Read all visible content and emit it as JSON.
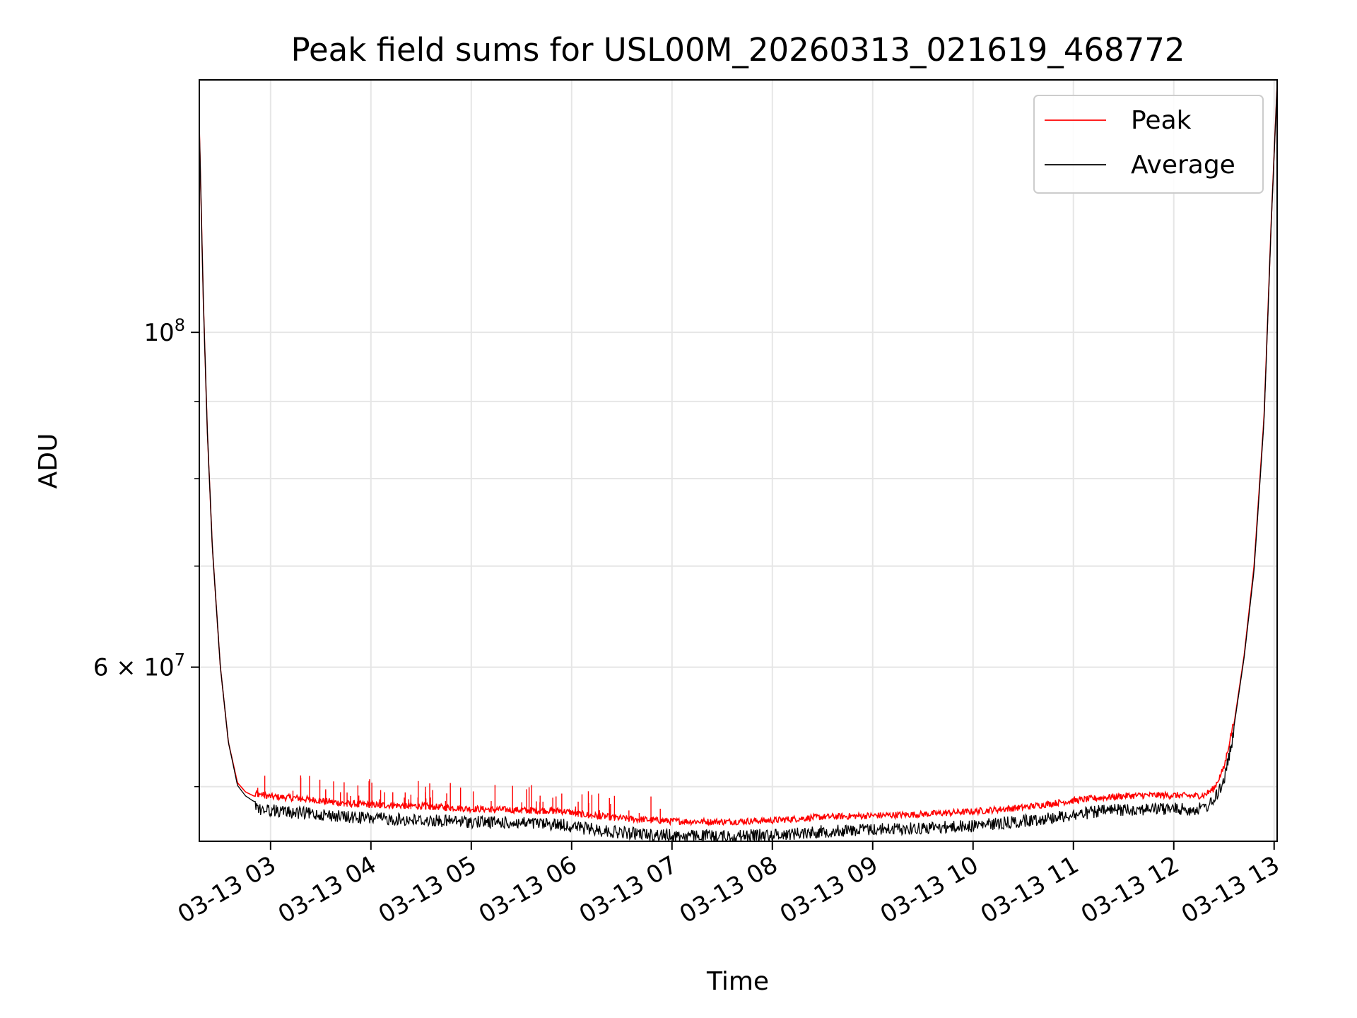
{
  "chart_data": {
    "type": "line",
    "title": "Peak field sums for USL00M_20260313_021619_468772",
    "xlabel": "Time",
    "ylabel": "ADU",
    "yscale": "log",
    "grid": true,
    "legend_position": "top-right",
    "xlim": [
      2.29,
      13.03
    ],
    "ylim": [
      46000000,
      147000000
    ],
    "x_unit": "hours since 2026-03-13 00:00",
    "x_ticks": [
      3,
      4,
      5,
      6,
      7,
      8,
      9,
      10,
      11,
      12,
      13
    ],
    "x_tick_labels": [
      "03-13 03",
      "03-13 04",
      "03-13 05",
      "03-13 06",
      "03-13 07",
      "03-13 08",
      "03-13 09",
      "03-13 10",
      "03-13 11",
      "03-13 12",
      "03-13 13"
    ],
    "y_major_ticks": [
      {
        "value": 100000000,
        "base": "10",
        "exp": "8"
      },
      {
        "value": 60000000,
        "mantissa": "6",
        "base": "10",
        "exp": "7"
      }
    ],
    "y_minor_ticks": [
      50000000,
      70000000,
      80000000,
      90000000
    ],
    "x": [
      2.29,
      2.33,
      2.37,
      2.42,
      2.5,
      2.58,
      2.67,
      2.75,
      2.83,
      3.0,
      3.25,
      3.5,
      3.75,
      4.0,
      4.5,
      5.0,
      5.5,
      5.9,
      6.1,
      6.5,
      7.0,
      7.5,
      8.0,
      8.5,
      9.0,
      9.5,
      10.0,
      10.5,
      11.0,
      11.25,
      11.5,
      11.75,
      12.0,
      12.2,
      12.3,
      12.4,
      12.5,
      12.6,
      12.7,
      12.8,
      12.9,
      12.97,
      13.03
    ],
    "series": [
      {
        "name": "Peak",
        "color": "#ff0000",
        "values": [
          137000000,
          105000000,
          86000000,
          72000000,
          60000000,
          53500000,
          50300000,
          49600000,
          49300000,
          49000000,
          48900000,
          48700000,
          48500000,
          48400000,
          48300000,
          48100000,
          48000000,
          47950000,
          47700000,
          47400000,
          47200000,
          47150000,
          47250000,
          47500000,
          47600000,
          47700000,
          47900000,
          48200000,
          48700000,
          48900000,
          49050000,
          49100000,
          49100000,
          49050000,
          49100000,
          49600000,
          51200000,
          55000000,
          61000000,
          70000000,
          88000000,
          118000000,
          146000000
        ],
        "spikes": {
          "x_range": [
            2.85,
            6.9
          ],
          "count": 70,
          "amplitude": 0.045
        }
      },
      {
        "name": "Average",
        "color": "#000000",
        "values": [
          137000000,
          105000000,
          86000000,
          72000000,
          60000000,
          53500000,
          50100000,
          49300000,
          48900000,
          48700000,
          48500000,
          48400000,
          48200000,
          48100000,
          47950000,
          47850000,
          47750000,
          47650000,
          47400000,
          47050000,
          46850000,
          46800000,
          46900000,
          47150000,
          47300000,
          47400000,
          47550000,
          47900000,
          48350000,
          48600000,
          48750000,
          48800000,
          48800000,
          48750000,
          48850000,
          49400000,
          51000000,
          54800000,
          60800000,
          69500000,
          87500000,
          117500000,
          146000000
        ],
        "noise_amplitude": 0.012
      }
    ]
  }
}
